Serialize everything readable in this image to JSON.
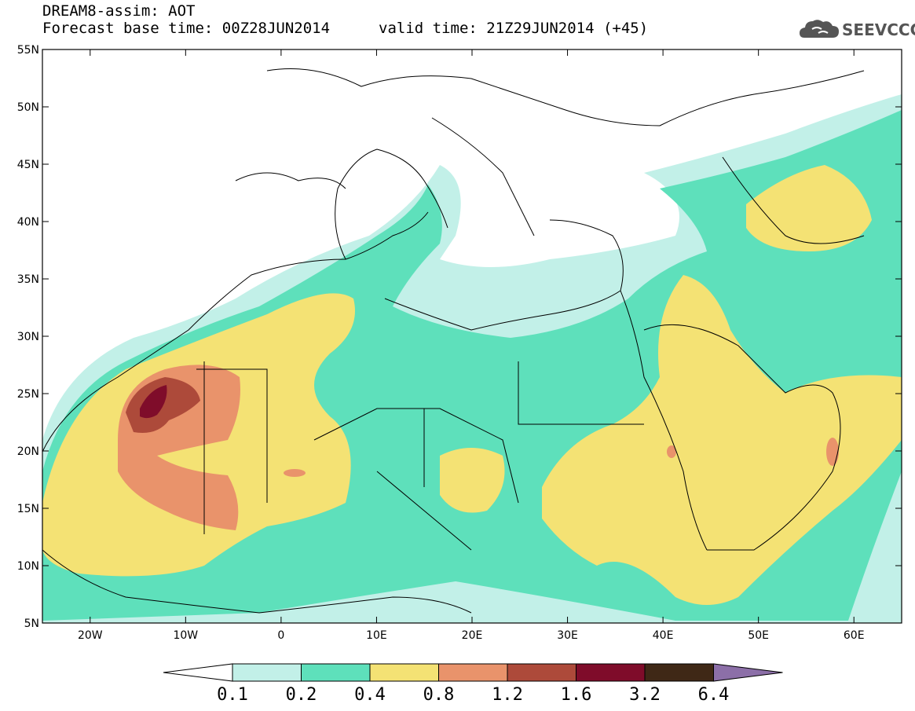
{
  "header": {
    "title": "DREAM8-assim: AOT",
    "base_time": "Forecast base time: 00Z28JUN2014",
    "valid_time": "valid time: 21Z29JUN2014 (+45)"
  },
  "logo": {
    "text": "SEEVCCC",
    "icon": "cloud-icon"
  },
  "map": {
    "lon_range": [
      -25,
      65
    ],
    "lat_range": [
      5,
      55
    ],
    "lat_ticks": [
      "5N",
      "10N",
      "15N",
      "20N",
      "25N",
      "30N",
      "35N",
      "40N",
      "45N",
      "50N",
      "55N"
    ],
    "lon_ticks": [
      "20W",
      "10W",
      "0",
      "10E",
      "20E",
      "30E",
      "40E",
      "50E",
      "60E"
    ]
  },
  "colorbar": {
    "labels": [
      "0.1",
      "0.2",
      "0.4",
      "0.8",
      "1.2",
      "1.6",
      "3.2",
      "6.4"
    ],
    "colors": [
      "#c2f0e8",
      "#5ee0bb",
      "#f4e274",
      "#e9936b",
      "#ad4a3a",
      "#7f0c2a",
      "#3f2816",
      "#8c6fa8"
    ],
    "below_color": "#ffffff"
  }
}
